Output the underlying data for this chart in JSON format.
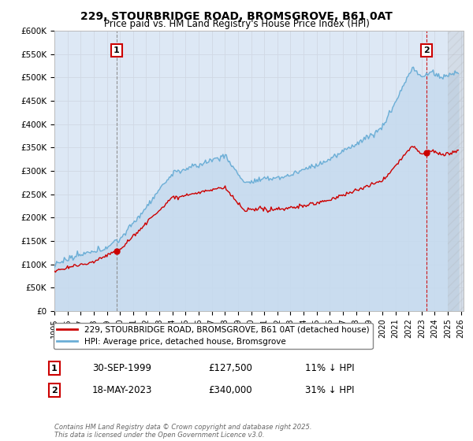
{
  "title": "229, STOURBRIDGE ROAD, BROMSGROVE, B61 0AT",
  "subtitle": "Price paid vs. HM Land Registry's House Price Index (HPI)",
  "ylim": [
    0,
    600000
  ],
  "yticks": [
    0,
    50000,
    100000,
    150000,
    200000,
    250000,
    300000,
    350000,
    400000,
    450000,
    500000,
    550000,
    600000
  ],
  "hpi_color": "#6baed6",
  "hpi_fill_color": "#c6dbef",
  "price_color": "#cc0000",
  "background_color": "#ffffff",
  "grid_color": "#d0d8e4",
  "plot_bg_color": "#dde8f5",
  "legend_label_price": "229, STOURBRIDGE ROAD, BROMSGROVE, B61 0AT (detached house)",
  "legend_label_hpi": "HPI: Average price, detached house, Bromsgrove",
  "annotation1_date": "30-SEP-1999",
  "annotation1_price": "£127,500",
  "annotation1_hpi": "11% ↓ HPI",
  "annotation2_date": "18-MAY-2023",
  "annotation2_price": "£340,000",
  "annotation2_hpi": "31% ↓ HPI",
  "footer": "Contains HM Land Registry data © Crown copyright and database right 2025.\nThis data is licensed under the Open Government Licence v3.0.",
  "sale1_year": 1999.75,
  "sale1_price": 127500,
  "sale2_year": 2023.38,
  "sale2_price": 340000
}
